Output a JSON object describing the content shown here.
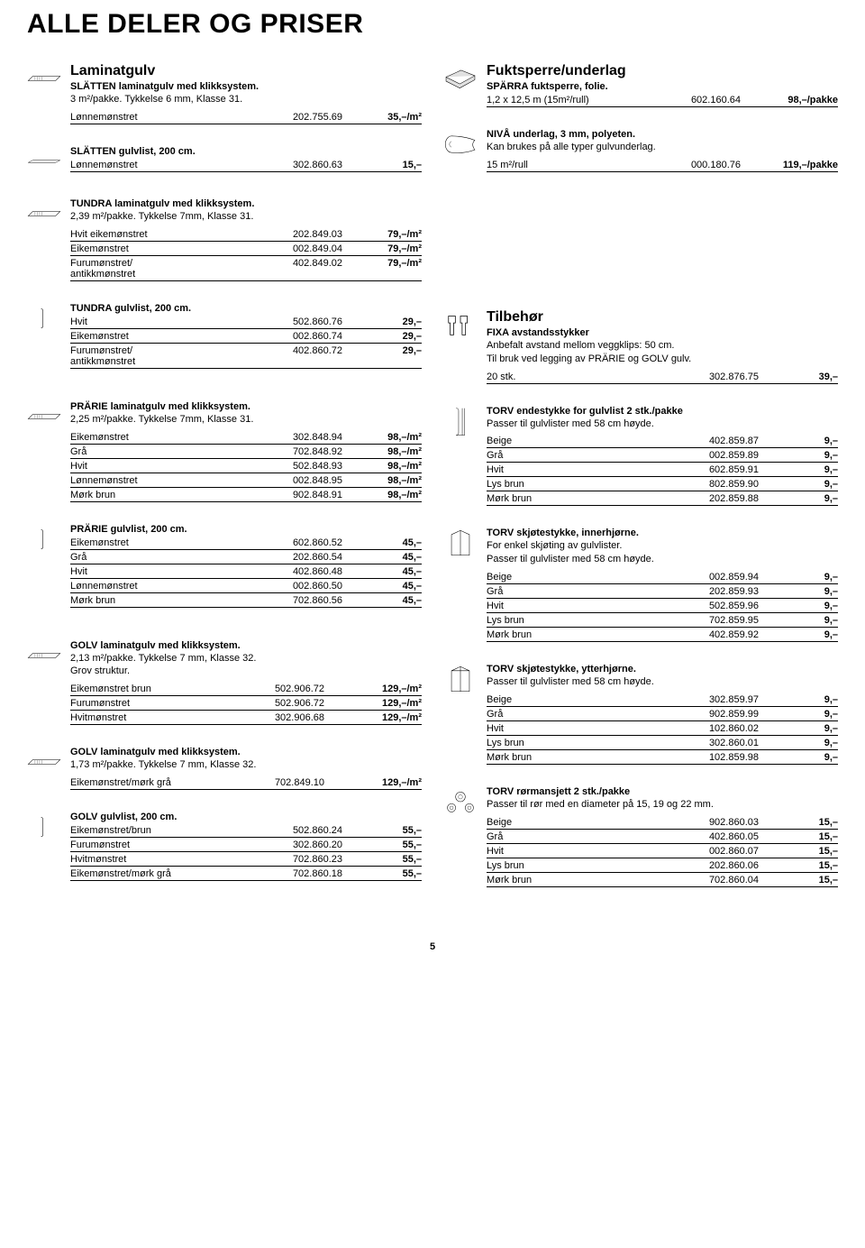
{
  "page_title": "ALLE DELER OG PRISER",
  "page_number": "5",
  "left": {
    "laminatgulv": {
      "title": "Laminatgulv",
      "sub": "SLÄTTEN laminatgulv med klikksystem.",
      "desc": "3 m²/pakke. Tykkelse 6 mm, Klasse 31.",
      "rows": [
        {
          "name": "Lønnemønstret",
          "art": "202.755.69",
          "price": "35,–/m²"
        }
      ]
    },
    "slatten_gulvlist": {
      "sub": "SLÄTTEN gulvlist, 200 cm.",
      "rows": [
        {
          "name": "Lønnemønstret",
          "art": "302.860.63",
          "price": "15,–"
        }
      ]
    },
    "tundra": {
      "sub": "TUNDRA laminatgulv med klikksystem.",
      "desc": "2,39 m²/pakke. Tykkelse 7mm, Klasse 31.",
      "rows": [
        {
          "name": "Hvit eikemønstret",
          "art": "202.849.03",
          "price": "79,–/m²"
        },
        {
          "name": "Eikemønstret",
          "art": "002.849.04",
          "price": "79,–/m²"
        },
        {
          "name": "Furumønstret/\nantikkmønstret",
          "art": "402.849.02",
          "price": "79,–/m²"
        }
      ]
    },
    "tundra_gulvlist": {
      "sub": "TUNDRA gulvlist, 200 cm.",
      "rows": [
        {
          "name": "Hvit",
          "art": "502.860.76",
          "price": "29,–"
        },
        {
          "name": "Eikemønstret",
          "art": "002.860.74",
          "price": "29,–"
        },
        {
          "name": "Furumønstret/\nantikkmønstret",
          "art": "402.860.72",
          "price": "29,–"
        }
      ]
    },
    "prarie": {
      "sub": "PRÄRIE laminatgulv med klikksystem.",
      "desc": "2,25 m²/pakke. Tykkelse 7mm, Klasse 31.",
      "rows": [
        {
          "name": "Eikemønstret",
          "art": "302.848.94",
          "price": "98,–/m²"
        },
        {
          "name": "Grå",
          "art": "702.848.92",
          "price": "98,–/m²"
        },
        {
          "name": "Hvit",
          "art": "502.848.93",
          "price": "98,–/m²"
        },
        {
          "name": "Lønnemønstret",
          "art": "002.848.95",
          "price": "98,–/m²"
        },
        {
          "name": "Mørk brun",
          "art": "902.848.91",
          "price": "98,–/m²"
        }
      ]
    },
    "prarie_gulvlist": {
      "sub": "PRÄRIE gulvlist, 200 cm.",
      "rows": [
        {
          "name": "Eikemønstret",
          "art": "602.860.52",
          "price": "45,–"
        },
        {
          "name": "Grå",
          "art": "202.860.54",
          "price": "45,–"
        },
        {
          "name": "Hvit",
          "art": "402.860.48",
          "price": "45,–"
        },
        {
          "name": "Lønnemønstret",
          "art": "002.860.50",
          "price": "45,–"
        },
        {
          "name": "Mørk brun",
          "art": "702.860.56",
          "price": "45,–"
        }
      ]
    },
    "golv1": {
      "sub": "GOLV laminatgulv med klikksystem.",
      "desc": "2,13 m²/pakke. Tykkelse 7 mm, Klasse 32.\nGrov struktur.",
      "rows": [
        {
          "name": "Eikemønstret brun",
          "art": "502.906.72",
          "price": "129,–/m²"
        },
        {
          "name": "Furumønstret",
          "art": "502.906.72",
          "price": "129,–/m²"
        },
        {
          "name": "Hvitmønstret",
          "art": "302.906.68",
          "price": "129,–/m²"
        }
      ]
    },
    "golv2": {
      "sub": "GOLV laminatgulv med klikksystem.",
      "desc": "1,73 m²/pakke. Tykkelse 7 mm, Klasse 32.",
      "rows": [
        {
          "name": "Eikemønstret/mørk grå",
          "art": "702.849.10",
          "price": "129,–/m²"
        }
      ]
    },
    "golv_gulvlist": {
      "sub": "GOLV gulvlist, 200 cm.",
      "rows": [
        {
          "name": "Eikemønstret/brun",
          "art": "502.860.24",
          "price": "55,–"
        },
        {
          "name": "Furumønstret",
          "art": "302.860.20",
          "price": "55,–"
        },
        {
          "name": "Hvitmønstret",
          "art": "702.860.23",
          "price": "55,–"
        },
        {
          "name": "Eikemønstret/mørk grå",
          "art": "702.860.18",
          "price": "55,–"
        }
      ]
    }
  },
  "right": {
    "fuktsperre": {
      "title": "Fuktsperre/underlag",
      "sub": "SPÄRRA fuktsperre, folie.",
      "rows": [
        {
          "name": "1,2 x 12,5 m (15m²/rull)",
          "art": "602.160.64",
          "price": "98,–/pakke"
        }
      ]
    },
    "niva": {
      "sub": "NIVÅ underlag, 3 mm, polyeten.",
      "desc": "Kan brukes på alle typer gulvunderlag.",
      "rows": [
        {
          "name": "15 m²/rull",
          "art": "000.180.76",
          "price": "119,–/pakke"
        }
      ]
    },
    "tilbehor": {
      "title": "Tilbehør",
      "sub": "FIXA avstandsstykker",
      "desc": "Anbefalt avstand mellom veggklips: 50 cm.\nTil bruk ved legging av PRÄRIE og GOLV gulv.",
      "rows": [
        {
          "name": "20 stk.",
          "art": "302.876.75",
          "price": "39,–"
        }
      ]
    },
    "torv_ende": {
      "sub": "TORV endestykke for gulvlist 2 stk./pakke",
      "desc": "Passer til gulvlister med 58 cm høyde.",
      "rows": [
        {
          "name": "Beige",
          "art": "402.859.87",
          "price": "9,–"
        },
        {
          "name": "Grå",
          "art": "002.859.89",
          "price": "9,–"
        },
        {
          "name": "Hvit",
          "art": "602.859.91",
          "price": "9,–"
        },
        {
          "name": "Lys brun",
          "art": "802.859.90",
          "price": "9,–"
        },
        {
          "name": "Mørk brun",
          "art": "202.859.88",
          "price": "9,–"
        }
      ]
    },
    "torv_inner": {
      "sub": "TORV skjøtestykke, innerhjørne.",
      "desc": "For enkel skjøting av gulvlister.\nPasser til gulvlister med 58 cm høyde.",
      "rows": [
        {
          "name": "Beige",
          "art": "002.859.94",
          "price": "9,–"
        },
        {
          "name": "Grå",
          "art": "202.859.93",
          "price": "9,–"
        },
        {
          "name": "Hvit",
          "art": "502.859.96",
          "price": "9,–"
        },
        {
          "name": "Lys brun",
          "art": "702.859.95",
          "price": "9,–"
        },
        {
          "name": "Mørk brun",
          "art": "402.859.92",
          "price": "9,–"
        }
      ]
    },
    "torv_ytter": {
      "sub": "TORV skjøtestykke, ytterhjørne.",
      "desc": "Passer til gulvlister med 58 cm høyde.",
      "rows": [
        {
          "name": "Beige",
          "art": "302.859.97",
          "price": "9,–"
        },
        {
          "name": "Grå",
          "art": "902.859.99",
          "price": "9,–"
        },
        {
          "name": "Hvit",
          "art": "102.860.02",
          "price": "9,–"
        },
        {
          "name": "Lys brun",
          "art": "302.860.01",
          "price": "9,–"
        },
        {
          "name": "Mørk brun",
          "art": "102.859.98",
          "price": "9,–"
        }
      ]
    },
    "torv_ror": {
      "sub": "TORV rørmansjett 2 stk./pakke",
      "desc": "Passer til rør med en diameter på 15, 19 og 22 mm.",
      "rows": [
        {
          "name": "Beige",
          "art": "902.860.03",
          "price": "15,–"
        },
        {
          "name": "Grå",
          "art": "402.860.05",
          "price": "15,–"
        },
        {
          "name": "Hvit",
          "art": "002.860.07",
          "price": "15,–"
        },
        {
          "name": "Lys brun",
          "art": "202.860.06",
          "price": "15,–"
        },
        {
          "name": "Mørk brun",
          "art": "702.860.04",
          "price": "15,–"
        }
      ]
    }
  }
}
